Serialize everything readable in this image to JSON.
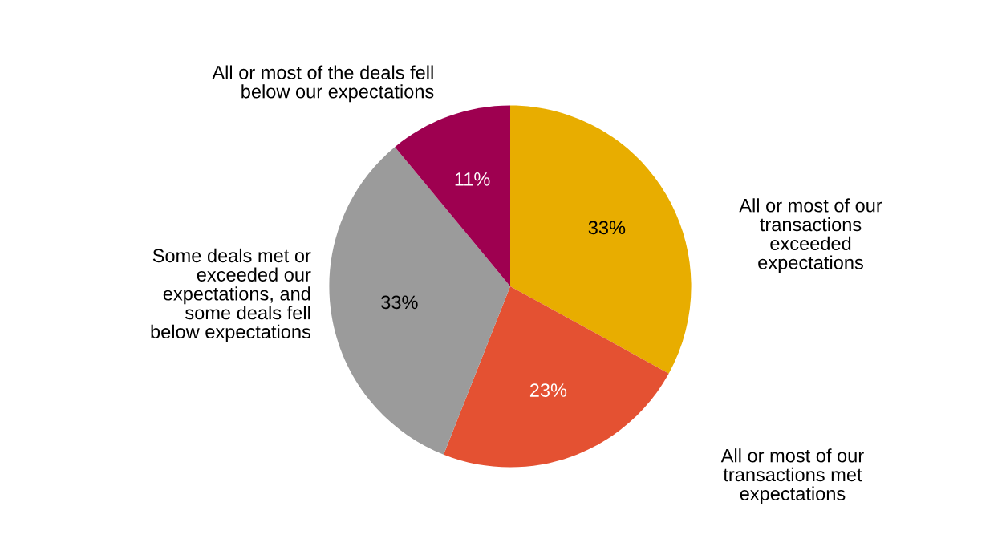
{
  "chart_data": {
    "type": "pie",
    "categories": [
      "All or most of our\ntransactions\nexceeded\nexpectations",
      "All or most of our\ntransactions met\nexpectations",
      "Some deals met or\nexceeded our\nexpectations, and\nsome deals fell\nbelow expectations",
      "All or most of the deals fell\nbelow our expectations"
    ],
    "values": [
      33,
      23,
      33,
      11
    ],
    "colors": [
      "#e8ad00",
      "#e45132",
      "#9b9b9b",
      "#9e0050"
    ],
    "value_labels": [
      "33%",
      "23%",
      "33%",
      "11%"
    ],
    "legend": false
  }
}
